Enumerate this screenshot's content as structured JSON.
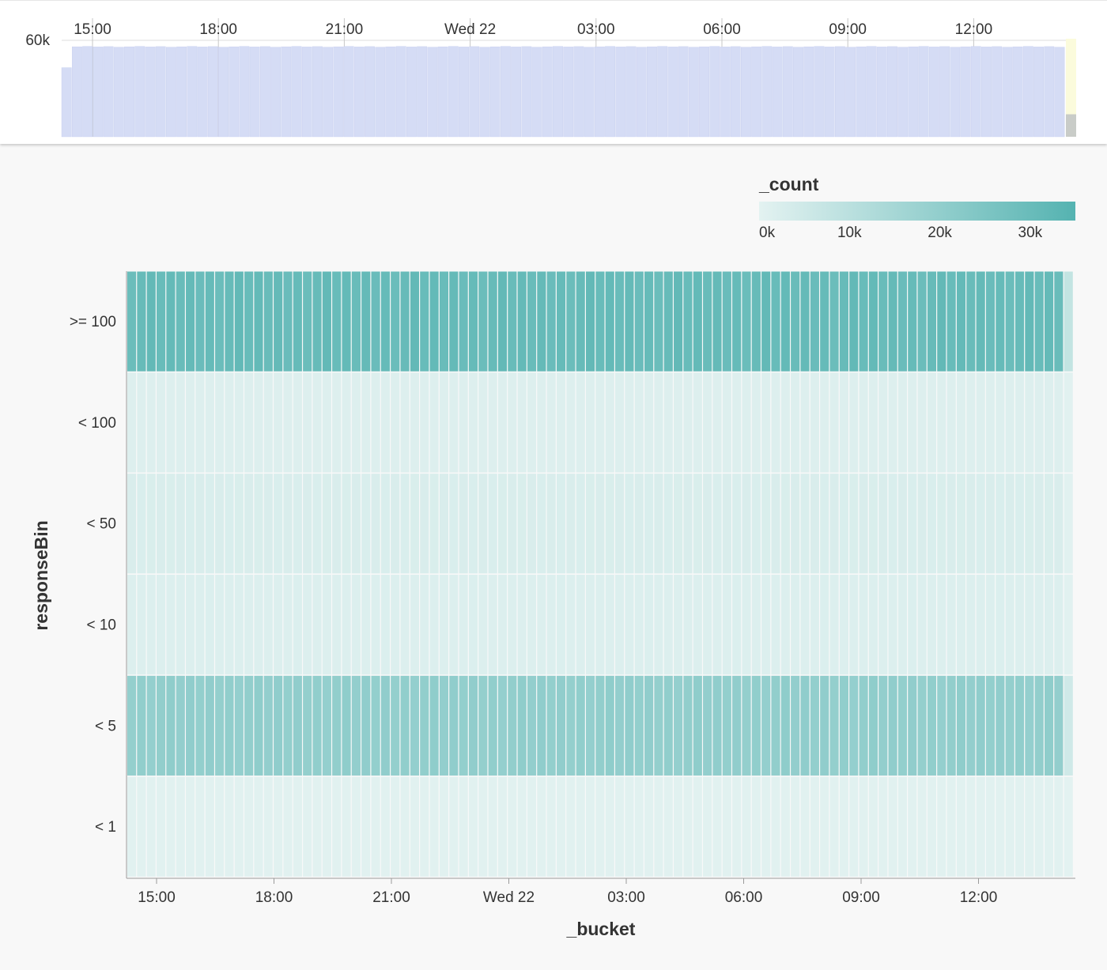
{
  "overview": {
    "y_tick_label": "60k",
    "x_tick_labels": [
      "15:00",
      "18:00",
      "21:00",
      "Wed 22",
      "03:00",
      "06:00",
      "09:00",
      "12:00"
    ],
    "bar_color": "#d5dcf5",
    "bar_stroke": "#c5cdee",
    "highlight_color": "#fbfbdc",
    "partial_bar_color": "#c9ccc8",
    "chart_data": {
      "type": "bar",
      "xlabel": "",
      "ylabel": "",
      "ylim": [
        0,
        60000
      ],
      "bar_count": 96,
      "first_value": 43000,
      "typical_value": 56000,
      "last_partial_value": 14000
    }
  },
  "legend": {
    "title": "_count",
    "tick_labels": [
      "0k",
      "10k",
      "20k",
      "30k"
    ],
    "color_min": "#e3f2f1",
    "color_max": "#55b3b1"
  },
  "heatmap": {
    "chart_data": {
      "type": "heatmap",
      "xlabel": "_bucket",
      "ylabel": "responseBin",
      "x_tick_labels": [
        "15:00",
        "18:00",
        "21:00",
        "Wed 22",
        "03:00",
        "06:00",
        "09:00",
        "12:00"
      ],
      "y_categories": [
        ">= 100",
        "< 100",
        "< 50",
        "< 10",
        "< 5",
        "< 1"
      ],
      "bucket_count": 96,
      "color_range": [
        0,
        35000
      ],
      "row_values": [
        30500,
        1500,
        2500,
        1800,
        20000,
        500
      ],
      "last_bucket_values": [
        8000,
        400,
        600,
        500,
        5000,
        100
      ]
    }
  }
}
